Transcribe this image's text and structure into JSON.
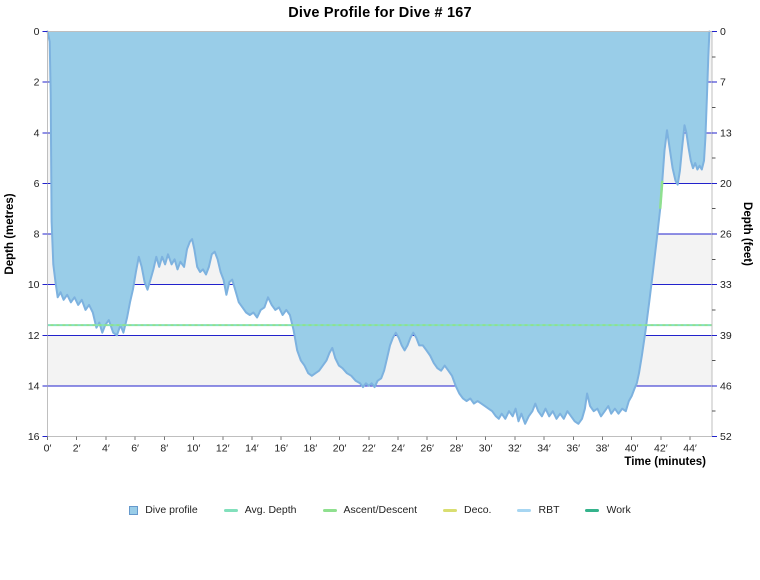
{
  "title": "Dive Profile for Dive # 167",
  "axes": {
    "left": {
      "title": "Depth (metres)"
    },
    "right": {
      "title": "Depth (feet)"
    },
    "x": {
      "title": "Time (minutes)"
    }
  },
  "colors": {
    "profile_fill": "#99CDE8",
    "profile_stroke": "#7DB2DF",
    "gridline": "#2222CC",
    "band_grey": "#F3F3F3",
    "band_white": "#FFFFFF",
    "plot_border": "#BFBFBF",
    "avg_depth": "#82E0BC",
    "ascent_descent": "#8FE08F",
    "deco": "#D9DE71",
    "rbt": "#A7D6F2",
    "work": "#35B38C",
    "tick_text": "#222222",
    "tick_minor": "#555555",
    "x_tick": "#777777",
    "legend_square_border": "#6699CC"
  },
  "legend": {
    "items": [
      {
        "id": "dive-profile",
        "label": "Dive profile",
        "marker": "square",
        "color": "#99CDE8"
      },
      {
        "id": "avg-depth",
        "label": "Avg. Depth",
        "marker": "line",
        "color": "#82E0BC"
      },
      {
        "id": "ascent-descent",
        "label": "Ascent/Descent",
        "marker": "line",
        "color": "#8FE08F"
      },
      {
        "id": "deco",
        "label": "Deco.",
        "marker": "line",
        "color": "#D9DE71"
      },
      {
        "id": "rbt",
        "label": "RBT",
        "marker": "line",
        "color": "#A7D6F2"
      },
      {
        "id": "work",
        "label": "Work",
        "marker": "line",
        "color": "#35B38C"
      }
    ]
  },
  "chart_data": {
    "type": "area",
    "title": "Dive Profile for Dive # 167",
    "xlabel": "Time (minutes)",
    "ylabel_left": "Depth (metres)",
    "ylabel_right": "Depth (feet)",
    "xlim": [
      0,
      45.5
    ],
    "ylim_metres": [
      0,
      16
    ],
    "grid": {
      "horizontal_every_m": 2,
      "alternating_bands_every_m": 2,
      "vertical": false
    },
    "x_ticks": {
      "labels": [
        "0′",
        "2′",
        "4′",
        "6′",
        "8′",
        "10′",
        "12′",
        "14′",
        "16′",
        "18′",
        "20′",
        "22′",
        "24′",
        "26′",
        "28′",
        "30′",
        "32′",
        "34′",
        "36′",
        "38′",
        "40′",
        "42′",
        "44′"
      ],
      "values": [
        0,
        2,
        4,
        6,
        8,
        10,
        12,
        14,
        16,
        18,
        20,
        22,
        24,
        26,
        28,
        30,
        32,
        34,
        36,
        38,
        40,
        42,
        44
      ]
    },
    "y_ticks_metres": {
      "labels": [
        "0",
        "2",
        "4",
        "6",
        "8",
        "10",
        "12",
        "14",
        "16"
      ],
      "values": [
        0,
        2,
        4,
        6,
        8,
        10,
        12,
        14,
        16
      ]
    },
    "y_ticks_feet": {
      "labels": [
        "0",
        "7",
        "13",
        "20",
        "26",
        "33",
        "39",
        "46",
        "52"
      ],
      "metre_positions": [
        0,
        2,
        4,
        6,
        8,
        10,
        12,
        14,
        16
      ],
      "minor_metre_positions": [
        1,
        3,
        5,
        7,
        9,
        11,
        13,
        15
      ]
    },
    "avg_depth_m": 11.6,
    "ascent_highlight": {
      "t_start": 41.9,
      "t_end": 42.15
    },
    "series": [
      {
        "name": "Dive profile",
        "points": [
          [
            0,
            0
          ],
          [
            0.15,
            0.4
          ],
          [
            0.22,
            2.5
          ],
          [
            0.28,
            7.5
          ],
          [
            0.4,
            9.2
          ],
          [
            0.55,
            9.9
          ],
          [
            0.7,
            10.5
          ],
          [
            0.9,
            10.3
          ],
          [
            1.1,
            10.6
          ],
          [
            1.35,
            10.4
          ],
          [
            1.6,
            10.7
          ],
          [
            1.85,
            10.5
          ],
          [
            2.1,
            10.8
          ],
          [
            2.35,
            10.6
          ],
          [
            2.6,
            11.0
          ],
          [
            2.85,
            10.8
          ],
          [
            3.1,
            11.1
          ],
          [
            3.35,
            11.7
          ],
          [
            3.55,
            11.5
          ],
          [
            3.75,
            11.9
          ],
          [
            3.95,
            11.6
          ],
          [
            4.2,
            11.4
          ],
          [
            4.5,
            11.9
          ],
          [
            4.75,
            12.0
          ],
          [
            5.0,
            11.6
          ],
          [
            5.2,
            11.9
          ],
          [
            5.45,
            11.3
          ],
          [
            5.65,
            10.7
          ],
          [
            5.85,
            10.2
          ],
          [
            6.05,
            9.5
          ],
          [
            6.25,
            8.9
          ],
          [
            6.45,
            9.3
          ],
          [
            6.65,
            9.9
          ],
          [
            6.85,
            10.2
          ],
          [
            7.05,
            9.8
          ],
          [
            7.25,
            9.4
          ],
          [
            7.45,
            8.9
          ],
          [
            7.65,
            9.3
          ],
          [
            7.85,
            8.9
          ],
          [
            8.05,
            9.2
          ],
          [
            8.25,
            8.8
          ],
          [
            8.5,
            9.2
          ],
          [
            8.7,
            9.0
          ],
          [
            8.9,
            9.4
          ],
          [
            9.1,
            9.1
          ],
          [
            9.35,
            9.3
          ],
          [
            9.55,
            8.6
          ],
          [
            9.75,
            8.3
          ],
          [
            9.9,
            8.2
          ],
          [
            10.05,
            8.6
          ],
          [
            10.25,
            9.3
          ],
          [
            10.45,
            9.5
          ],
          [
            10.65,
            9.4
          ],
          [
            10.85,
            9.6
          ],
          [
            11.05,
            9.3
          ],
          [
            11.25,
            8.8
          ],
          [
            11.45,
            8.7
          ],
          [
            11.65,
            9.0
          ],
          [
            11.85,
            9.5
          ],
          [
            12.05,
            9.8
          ],
          [
            12.25,
            10.4
          ],
          [
            12.45,
            9.9
          ],
          [
            12.65,
            9.8
          ],
          [
            12.9,
            10.3
          ],
          [
            13.1,
            10.7
          ],
          [
            13.35,
            10.9
          ],
          [
            13.6,
            11.1
          ],
          [
            13.85,
            11.2
          ],
          [
            14.1,
            11.1
          ],
          [
            14.35,
            11.3
          ],
          [
            14.6,
            11.0
          ],
          [
            14.85,
            10.9
          ],
          [
            15.1,
            10.5
          ],
          [
            15.35,
            10.8
          ],
          [
            15.6,
            11.0
          ],
          [
            15.85,
            10.9
          ],
          [
            16.1,
            11.2
          ],
          [
            16.35,
            11.0
          ],
          [
            16.6,
            11.2
          ],
          [
            16.85,
            11.8
          ],
          [
            17.1,
            12.6
          ],
          [
            17.35,
            13.0
          ],
          [
            17.6,
            13.2
          ],
          [
            17.85,
            13.5
          ],
          [
            18.1,
            13.6
          ],
          [
            18.35,
            13.5
          ],
          [
            18.6,
            13.4
          ],
          [
            18.85,
            13.2
          ],
          [
            19.1,
            13.0
          ],
          [
            19.3,
            12.7
          ],
          [
            19.5,
            12.5
          ],
          [
            19.7,
            12.9
          ],
          [
            19.95,
            13.2
          ],
          [
            20.2,
            13.3
          ],
          [
            20.5,
            13.5
          ],
          [
            20.8,
            13.6
          ],
          [
            21.1,
            13.8
          ],
          [
            21.4,
            13.9
          ],
          [
            21.6,
            14.05
          ],
          [
            21.8,
            13.9
          ],
          [
            22.0,
            14.0
          ],
          [
            22.2,
            13.9
          ],
          [
            22.4,
            14.05
          ],
          [
            22.6,
            13.8
          ],
          [
            22.85,
            13.7
          ],
          [
            23.05,
            13.4
          ],
          [
            23.25,
            12.9
          ],
          [
            23.45,
            12.4
          ],
          [
            23.65,
            12.1
          ],
          [
            23.85,
            11.9
          ],
          [
            24.05,
            12.1
          ],
          [
            24.25,
            12.4
          ],
          [
            24.45,
            12.6
          ],
          [
            24.65,
            12.4
          ],
          [
            24.85,
            12.1
          ],
          [
            25.05,
            11.9
          ],
          [
            25.25,
            12.1
          ],
          [
            25.45,
            12.4
          ],
          [
            25.7,
            12.4
          ],
          [
            25.95,
            12.6
          ],
          [
            26.2,
            12.8
          ],
          [
            26.45,
            13.1
          ],
          [
            26.7,
            13.3
          ],
          [
            26.95,
            13.4
          ],
          [
            27.2,
            13.2
          ],
          [
            27.45,
            13.4
          ],
          [
            27.7,
            13.6
          ],
          [
            27.95,
            14.0
          ],
          [
            28.2,
            14.3
          ],
          [
            28.45,
            14.5
          ],
          [
            28.7,
            14.6
          ],
          [
            28.95,
            14.5
          ],
          [
            29.2,
            14.7
          ],
          [
            29.45,
            14.6
          ],
          [
            29.7,
            14.7
          ],
          [
            29.95,
            14.8
          ],
          [
            30.2,
            14.9
          ],
          [
            30.45,
            15.0
          ],
          [
            30.7,
            15.2
          ],
          [
            30.9,
            15.3
          ],
          [
            31.1,
            15.1
          ],
          [
            31.35,
            15.3
          ],
          [
            31.6,
            15.0
          ],
          [
            31.85,
            15.2
          ],
          [
            32.05,
            14.9
          ],
          [
            32.25,
            15.4
          ],
          [
            32.45,
            15.1
          ],
          [
            32.7,
            15.5
          ],
          [
            32.95,
            15.2
          ],
          [
            33.2,
            15.0
          ],
          [
            33.4,
            14.7
          ],
          [
            33.6,
            15.0
          ],
          [
            33.85,
            15.2
          ],
          [
            34.1,
            14.9
          ],
          [
            34.35,
            15.2
          ],
          [
            34.6,
            15.0
          ],
          [
            34.85,
            15.3
          ],
          [
            35.1,
            15.1
          ],
          [
            35.35,
            15.3
          ],
          [
            35.6,
            15.0
          ],
          [
            35.85,
            15.2
          ],
          [
            36.1,
            15.4
          ],
          [
            36.35,
            15.5
          ],
          [
            36.6,
            15.3
          ],
          [
            36.8,
            14.9
          ],
          [
            36.95,
            14.3
          ],
          [
            37.15,
            14.8
          ],
          [
            37.4,
            15.0
          ],
          [
            37.65,
            14.9
          ],
          [
            37.9,
            15.2
          ],
          [
            38.15,
            15.0
          ],
          [
            38.4,
            14.8
          ],
          [
            38.6,
            15.1
          ],
          [
            38.85,
            14.9
          ],
          [
            39.1,
            15.1
          ],
          [
            39.35,
            14.9
          ],
          [
            39.6,
            15.0
          ],
          [
            39.8,
            14.6
          ],
          [
            40.0,
            14.4
          ],
          [
            40.2,
            14.1
          ],
          [
            40.35,
            13.9
          ],
          [
            40.5,
            13.5
          ],
          [
            40.7,
            12.8
          ],
          [
            40.95,
            11.8
          ],
          [
            41.2,
            10.7
          ],
          [
            41.45,
            9.5
          ],
          [
            41.7,
            8.3
          ],
          [
            41.95,
            7.0
          ],
          [
            42.1,
            5.9
          ],
          [
            42.25,
            4.7
          ],
          [
            42.42,
            3.9
          ],
          [
            42.6,
            4.6
          ],
          [
            42.8,
            5.4
          ],
          [
            43.0,
            5.9
          ],
          [
            43.15,
            6.05
          ],
          [
            43.3,
            5.5
          ],
          [
            43.45,
            4.6
          ],
          [
            43.62,
            3.7
          ],
          [
            43.75,
            4.0
          ],
          [
            43.9,
            4.6
          ],
          [
            44.05,
            5.1
          ],
          [
            44.2,
            5.4
          ],
          [
            44.35,
            5.2
          ],
          [
            44.5,
            5.45
          ],
          [
            44.65,
            5.3
          ],
          [
            44.8,
            5.45
          ],
          [
            44.95,
            5.1
          ],
          [
            45.05,
            4.2
          ],
          [
            45.15,
            2.6
          ],
          [
            45.25,
            1.0
          ],
          [
            45.32,
            0
          ]
        ]
      }
    ]
  }
}
